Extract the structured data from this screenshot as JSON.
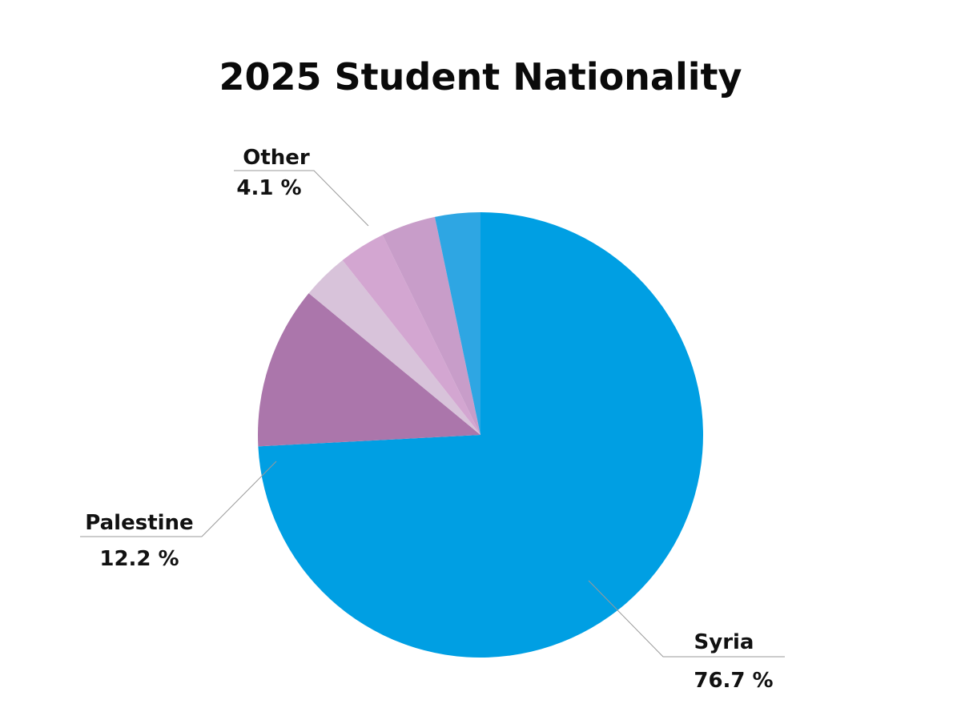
{
  "chart_data": {
    "type": "pie",
    "title": "2025 Student Nationality",
    "slices": [
      {
        "label": "Syria",
        "value_text": "76.7 %",
        "value": 76.7,
        "color": "#009fe3"
      },
      {
        "label": "Palestine",
        "value_text": "12.2 %",
        "value": 12.2,
        "color": "#ab76ab"
      },
      {
        "label": "",
        "value_text": "",
        "value": 3.5,
        "color": "#d8c3da"
      },
      {
        "label": "",
        "value_text": "",
        "value": 3.5,
        "color": "#d3a6d1"
      },
      {
        "label": "Other",
        "value_text": "4.1 %",
        "value": 4.1,
        "color": "#c89dc9"
      },
      {
        "label": "",
        "value_text": "",
        "value": 3.4,
        "color": "#2ea6e3"
      }
    ],
    "start_angle": "12 o'clock",
    "direction": "clockwise",
    "legend": "none"
  }
}
